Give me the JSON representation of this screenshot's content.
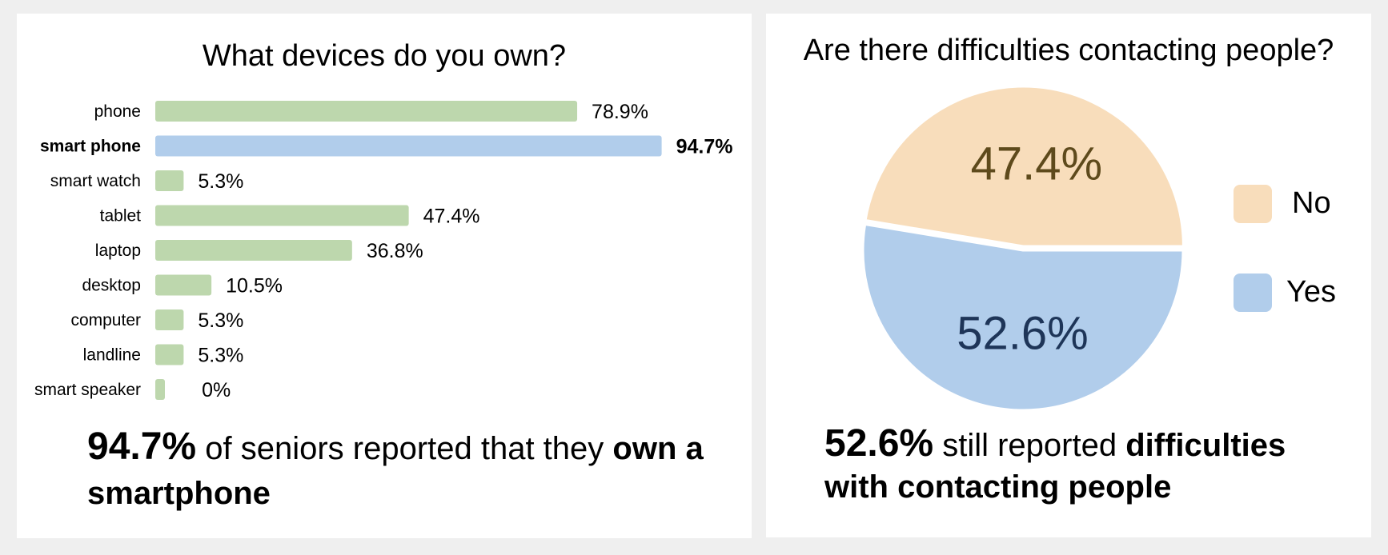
{
  "chart_data": [
    {
      "type": "bar",
      "orientation": "horizontal",
      "title": "What devices do you own?",
      "categories": [
        "phone",
        "smart phone",
        "smart watch",
        "tablet",
        "laptop",
        "desktop",
        "computer",
        "landline",
        "smart speaker"
      ],
      "values": [
        78.9,
        94.7,
        5.3,
        47.4,
        36.8,
        10.5,
        5.3,
        5.3,
        0
      ],
      "value_labels": [
        "78.9%",
        "94.7%",
        "5.3%",
        "47.4%",
        "36.8%",
        "10.5%",
        "5.3%",
        "5.3%",
        "0%"
      ],
      "highlight_category": "smart phone",
      "colors": {
        "default": "#bdd7ad",
        "highlight": "#b1cdeb"
      },
      "xlim": [
        0,
        100
      ],
      "grid": false,
      "caption": {
        "value": "94.7%",
        "text_plain": " of seniors reported that they ",
        "text_bold": "own a smartphone"
      }
    },
    {
      "type": "pie",
      "title": "Are there difficulties contacting people?",
      "labels": [
        "No",
        "Yes"
      ],
      "values": [
        47.4,
        52.6
      ],
      "value_labels": [
        "47.4%",
        "52.6%"
      ],
      "colors": [
        "#f8ddbb",
        "#b1cdeb"
      ],
      "label_colors": [
        "#5e4a1c",
        "#1e3558"
      ],
      "legend": "right",
      "caption": {
        "value": "52.6%",
        "text_plain": " still reported ",
        "text_bold": "difficulties with contacting people"
      }
    }
  ]
}
